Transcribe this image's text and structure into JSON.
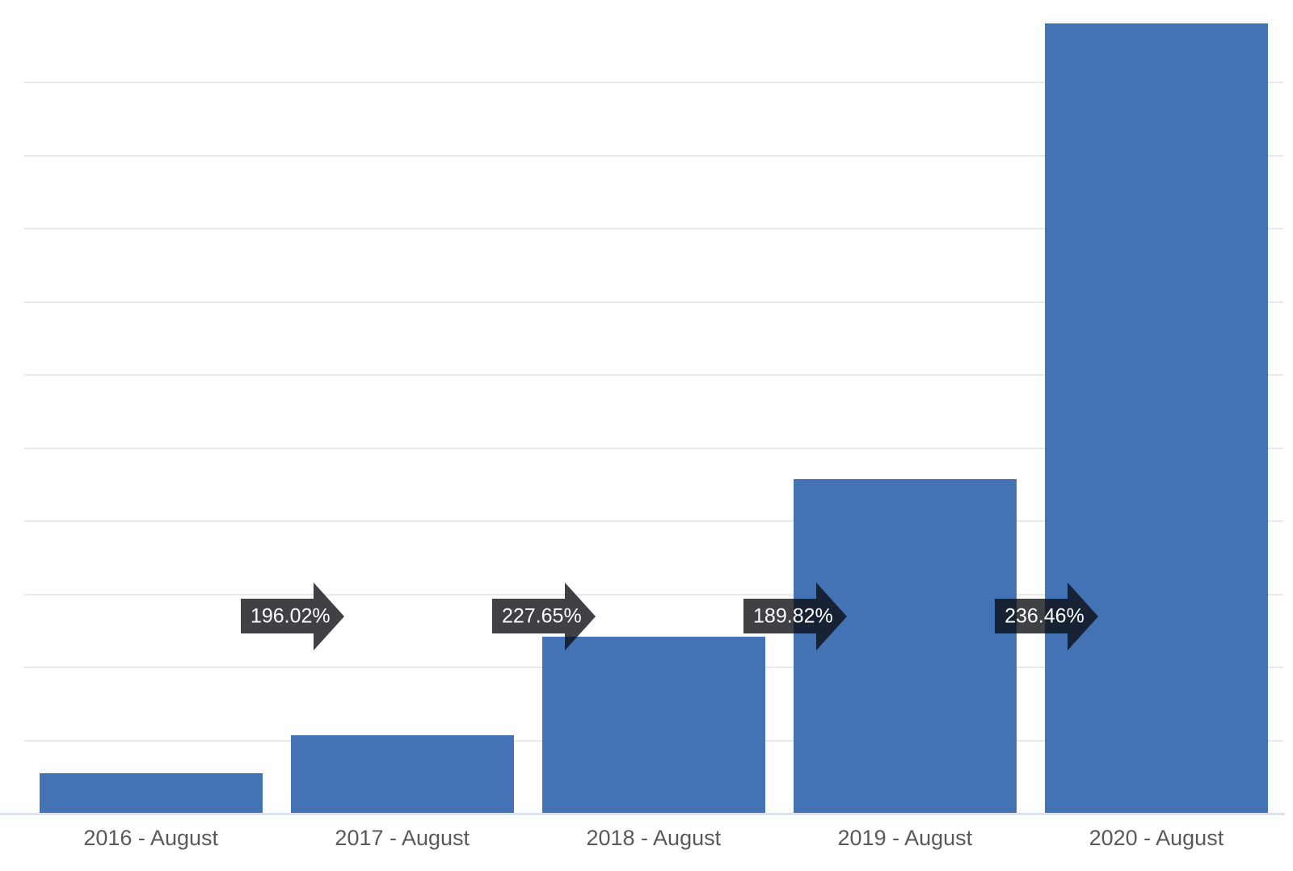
{
  "chart_data": {
    "type": "bar",
    "title": "",
    "xlabel": "",
    "ylabel": "",
    "legend": "none",
    "grid": "horizontal",
    "ylim": [
      0,
      20.6
    ],
    "categories": [
      "2016 - August",
      "2017 - August",
      "2018 - August",
      "2019 - August",
      "2020 - August"
    ],
    "series": [
      {
        "name": "value",
        "values": [
          1.0,
          1.9602,
          4.4624,
          8.4707,
          20.0297
        ]
      }
    ],
    "growth_annotations": [
      {
        "from": "2016 - August",
        "to": "2017 - August",
        "label": "196.02%"
      },
      {
        "from": "2017 - August",
        "to": "2018 - August",
        "label": "227.65%"
      },
      {
        "from": "2018 - August",
        "to": "2019 - August",
        "label": "189.82%"
      },
      {
        "from": "2019 - August",
        "to": "2020 - August",
        "label": "236.46%"
      }
    ],
    "colors": {
      "bar": "#4473b5",
      "arrow": "rgba(10,12,16,0.78)",
      "arrow_text": "#ffffff",
      "axis_label": "#595959",
      "gridline": "#e9e9e9",
      "baseline": "#dbe2ef",
      "background": "#ffffff"
    }
  }
}
